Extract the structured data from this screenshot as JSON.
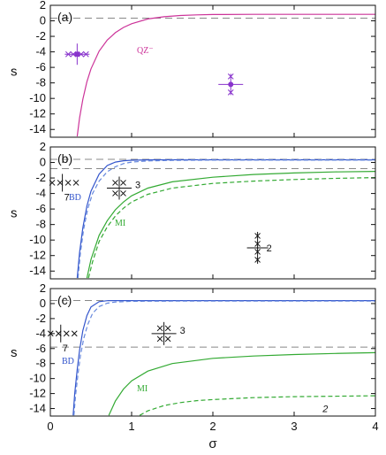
{
  "chart_data": [
    {
      "type": "line",
      "panel_label": "(a)",
      "xlabel": "",
      "ylabel": "s",
      "xlim": [
        0,
        4
      ],
      "ylim": [
        -15,
        2
      ],
      "yticks": [
        "2",
        "0",
        "-2",
        "-4",
        "-6",
        "-8",
        "-10",
        "-12",
        "-14"
      ],
      "xticks": [
        "",
        "",
        "",
        "",
        ""
      ],
      "hlines": [
        {
          "y": 0.35,
          "style": "dashed",
          "color": "#888888"
        }
      ],
      "series": [
        {
          "name": "QZ",
          "curve_label": "QZ⁻",
          "color": "#cc3399",
          "x": [
            0.33,
            0.36,
            0.4,
            0.45,
            0.5,
            0.6,
            0.7,
            0.8,
            0.9,
            1.0,
            1.2,
            1.4,
            1.6,
            1.8,
            2.0,
            2.5,
            3.0,
            3.5,
            4.0
          ],
          "y": [
            -14.9,
            -12.5,
            -10.1,
            -7.85,
            -6.19,
            -3.91,
            -2.48,
            -1.52,
            -0.85,
            -0.37,
            0.24,
            0.53,
            0.69,
            0.77,
            0.81,
            0.835,
            0.84,
            0.84,
            0.84
          ]
        }
      ],
      "markers": [
        {
          "kind": "dot-cross",
          "x": 0.33,
          "y": -4.3,
          "color": "#8833cc"
        },
        {
          "kind": "dot-cross",
          "x": 2.22,
          "y": -8.2,
          "color": "#8833cc"
        }
      ]
    },
    {
      "type": "line",
      "panel_label": "(b)",
      "xlabel": "",
      "ylabel": "s",
      "xlim": [
        0,
        4
      ],
      "ylim": [
        -15,
        2
      ],
      "yticks": [
        "2",
        "0",
        "-2",
        "-4",
        "-6",
        "-8",
        "-10",
        "-12",
        "-14"
      ],
      "xticks": [
        "",
        "",
        "",
        "",
        ""
      ],
      "hlines": [
        {
          "y": 0.4,
          "style": "dashed",
          "color": "#888888"
        },
        {
          "y": -0.8,
          "style": "dashed",
          "color": "#888888"
        }
      ],
      "series": [
        {
          "name": "BD",
          "curve_label": "BD",
          "color": "#3355cc",
          "style": "solid",
          "x": [
            0.33,
            0.36,
            0.4,
            0.45,
            0.5,
            0.6,
            0.7,
            0.8,
            0.9,
            1.0,
            1.2,
            1.5,
            2.0,
            3.0,
            4.0
          ],
          "y": [
            -14.9,
            -11.6,
            -8.4,
            -5.6,
            -3.7,
            -1.5,
            -0.4,
            0.05,
            0.22,
            0.29,
            0.33,
            0.34,
            0.35,
            0.35,
            0.35
          ]
        },
        {
          "name": "BD (dashed)",
          "color": "#6688dd",
          "style": "dashed",
          "x": [
            0.34,
            0.37,
            0.41,
            0.46,
            0.52,
            0.6,
            0.7,
            0.8,
            0.9,
            1.0,
            1.2,
            1.5,
            2.0,
            3.0,
            4.0
          ],
          "y": [
            -14.9,
            -11.7,
            -8.6,
            -6.0,
            -4.0,
            -2.4,
            -1.2,
            -0.55,
            -0.15,
            0.05,
            0.2,
            0.27,
            0.3,
            0.3,
            0.3
          ]
        },
        {
          "name": "MI",
          "curve_label": "MI",
          "color": "#33aa33",
          "style": "solid",
          "x": [
            0.45,
            0.5,
            0.6,
            0.7,
            0.8,
            0.9,
            1.0,
            1.2,
            1.5,
            2.0,
            2.5,
            3.0,
            3.5,
            4.0
          ],
          "y": [
            -14.9,
            -12.5,
            -9.4,
            -7.5,
            -6.1,
            -5.1,
            -4.3,
            -3.3,
            -2.5,
            -1.9,
            -1.55,
            -1.35,
            -1.22,
            -1.15
          ]
        },
        {
          "name": "MI (dashed)",
          "color": "#33aa33",
          "style": "dashed",
          "x": [
            0.47,
            0.52,
            0.6,
            0.7,
            0.8,
            0.9,
            1.0,
            1.2,
            1.5,
            2.0,
            2.5,
            3.0,
            3.5,
            4.0
          ],
          "y": [
            -14.9,
            -12.8,
            -10.2,
            -8.3,
            -6.9,
            -5.9,
            -5.1,
            -4.1,
            -3.3,
            -2.7,
            -2.4,
            -2.2,
            -2.05,
            -1.95
          ]
        }
      ],
      "annotations": [
        {
          "text": "7",
          "x": 0.3,
          "y": -3.3
        },
        {
          "text": "3",
          "x": 1.0,
          "y": -3.3
        },
        {
          "text": "2",
          "x": 2.55,
          "y": -11.0
        }
      ]
    },
    {
      "type": "line",
      "panel_label": "(c)",
      "xlabel": "σ",
      "ylabel": "s",
      "xlim": [
        0,
        4
      ],
      "ylim": [
        -15,
        2
      ],
      "yticks": [
        "2",
        "0",
        "-2",
        "-4",
        "-6",
        "-8",
        "-10",
        "-12",
        "-14"
      ],
      "xticks": [
        "0",
        "1",
        "2",
        "3",
        "4"
      ],
      "hlines": [
        {
          "y": 0.4,
          "style": "dashed",
          "color": "#888888"
        },
        {
          "y": -5.8,
          "style": "dashed",
          "color": "#888888"
        }
      ],
      "series": [
        {
          "name": "BD",
          "curve_label": "BD",
          "color": "#3355cc",
          "style": "solid",
          "x": [
            0.28,
            0.3,
            0.33,
            0.36,
            0.4,
            0.45,
            0.5,
            0.6,
            0.7,
            0.8,
            1.0,
            1.5,
            2.0,
            3.0,
            4.0
          ],
          "y": [
            -14.9,
            -12.0,
            -8.8,
            -6.2,
            -3.6,
            -1.6,
            -0.45,
            0.25,
            0.38,
            0.4,
            0.4,
            0.4,
            0.4,
            0.4,
            0.4
          ]
        },
        {
          "name": "BD (dashed)",
          "color": "#6688dd",
          "style": "dashed",
          "x": [
            0.29,
            0.31,
            0.34,
            0.37,
            0.41,
            0.46,
            0.52,
            0.6,
            0.7,
            0.8,
            1.0,
            1.5,
            2.0,
            3.0,
            4.0
          ],
          "y": [
            -14.9,
            -12.3,
            -9.4,
            -7.0,
            -4.7,
            -2.8,
            -1.3,
            -0.4,
            0.05,
            0.2,
            0.3,
            0.32,
            0.32,
            0.32,
            0.32
          ]
        },
        {
          "name": "MI",
          "curve_label": "MI",
          "color": "#33aa33",
          "style": "solid",
          "x": [
            0.72,
            0.8,
            0.9,
            1.0,
            1.2,
            1.5,
            2.0,
            2.5,
            3.0,
            3.5,
            4.0
          ],
          "y": [
            -14.9,
            -13.0,
            -11.4,
            -10.3,
            -9.0,
            -8.0,
            -7.3,
            -7.0,
            -6.8,
            -6.65,
            -6.55
          ]
        },
        {
          "name": "MI (dashed)",
          "color": "#33aa33",
          "style": "dashed",
          "x": [
            1.1,
            1.2,
            1.4,
            1.6,
            1.8,
            2.0,
            2.5,
            3.0,
            3.5,
            4.0
          ],
          "y": [
            -14.9,
            -14.3,
            -13.6,
            -13.2,
            -12.95,
            -12.8,
            -12.55,
            -12.42,
            -12.35,
            -12.3
          ]
        }
      ],
      "annotations": [
        {
          "text": "7",
          "x": 0.28,
          "y": -4.7
        },
        {
          "text": "3",
          "x": 1.55,
          "y": -4.0
        },
        {
          "text": "2",
          "x": 3.35,
          "y": -14.0
        }
      ]
    }
  ]
}
